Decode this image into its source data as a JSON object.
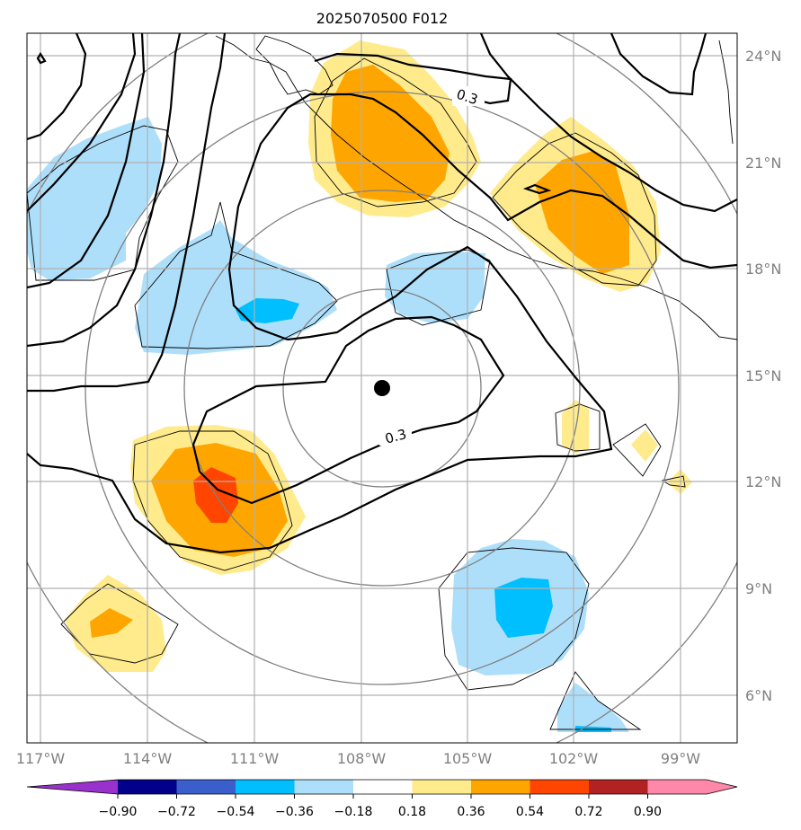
{
  "title": "2025070500 F012",
  "colors": {
    "pos1": "#FFEB8C",
    "pos2": "#FFA500",
    "pos3": "#FF4500",
    "pos4": "#B22222",
    "pos5": "#FF88AA",
    "neg1": "#AEDFFA",
    "neg2": "#00BFFF",
    "neg3": "#3A5FCD",
    "neg4": "#00008B",
    "neg5": "#9932CC",
    "grid": "#B0B0B0",
    "ring": "#808080",
    "contour": "#000000"
  },
  "lon_labels": [
    "117°W",
    "114°W",
    "111°W",
    "108°W",
    "105°W",
    "102°W",
    "99°W"
  ],
  "lat_labels": [
    "24°N",
    "21°N",
    "18°N",
    "15°N",
    "12°N",
    "9°N",
    "6°N"
  ],
  "contour_labels": [
    "0.3",
    "0.3"
  ],
  "center_marker": "storm-center",
  "colorbar": {
    "ticks": [
      "−0.90",
      "−0.72",
      "−0.54",
      "−0.36",
      "−0.18",
      "0.18",
      "0.36",
      "0.54",
      "0.72",
      "0.90"
    ]
  }
}
